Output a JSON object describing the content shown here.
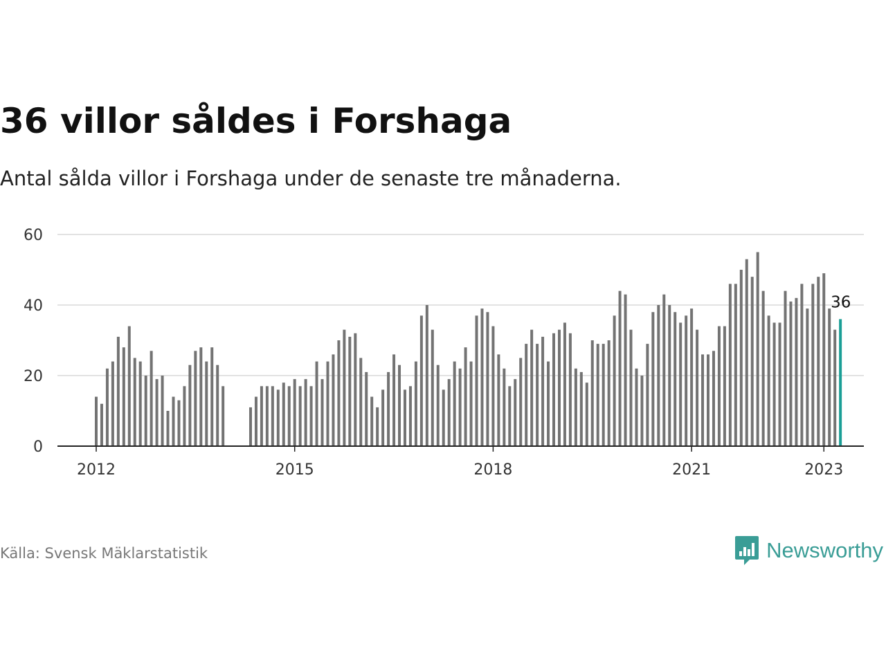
{
  "title": "36 villor såldes i Forshaga",
  "subtitle": "Antal sålda villor i Forshaga under de senaste tre månaderna.",
  "source": "Källa: Svensk Mäklarstatistik",
  "brand": {
    "name": "Newsworthy",
    "icon": "newsworthy-logo-icon",
    "color": "#3a9d96"
  },
  "chart_data": {
    "type": "bar",
    "title": "36 villor såldes i Forshaga",
    "subtitle": "Antal sålda villor i Forshaga under de senaste tre månaderna.",
    "xlabel": "",
    "ylabel": "",
    "ylim": [
      0,
      60
    ],
    "yticks": [
      0,
      20,
      40,
      60
    ],
    "xticks": [
      "2012",
      "2015",
      "2018",
      "2021",
      "2023"
    ],
    "grid": true,
    "bar_color": "#737373",
    "highlight_color": "#1a9e96",
    "highlight_label": "36",
    "x_start": "2012-01",
    "values": [
      14,
      12,
      22,
      24,
      31,
      28,
      34,
      25,
      24,
      20,
      27,
      19,
      20,
      10,
      14,
      13,
      17,
      23,
      27,
      28,
      24,
      28,
      23,
      17,
      null,
      null,
      null,
      null,
      11,
      14,
      17,
      17,
      17,
      16,
      18,
      17,
      19,
      17,
      19,
      17,
      24,
      19,
      24,
      26,
      30,
      33,
      31,
      32,
      25,
      21,
      14,
      11,
      16,
      21,
      26,
      23,
      16,
      17,
      24,
      37,
      40,
      33,
      23,
      16,
      19,
      24,
      22,
      28,
      24,
      37,
      39,
      38,
      34,
      26,
      22,
      17,
      19,
      25,
      29,
      33,
      29,
      31,
      24,
      32,
      33,
      35,
      32,
      22,
      21,
      18,
      30,
      29,
      29,
      30,
      37,
      44,
      43,
      33,
      22,
      20,
      29,
      38,
      40,
      43,
      40,
      38,
      35,
      37,
      39,
      33,
      26,
      26,
      27,
      34,
      34,
      46,
      46,
      50,
      53,
      48,
      55,
      44,
      37,
      35,
      35,
      44,
      41,
      42,
      46,
      39,
      46,
      48,
      49,
      39,
      33,
      36
    ]
  }
}
